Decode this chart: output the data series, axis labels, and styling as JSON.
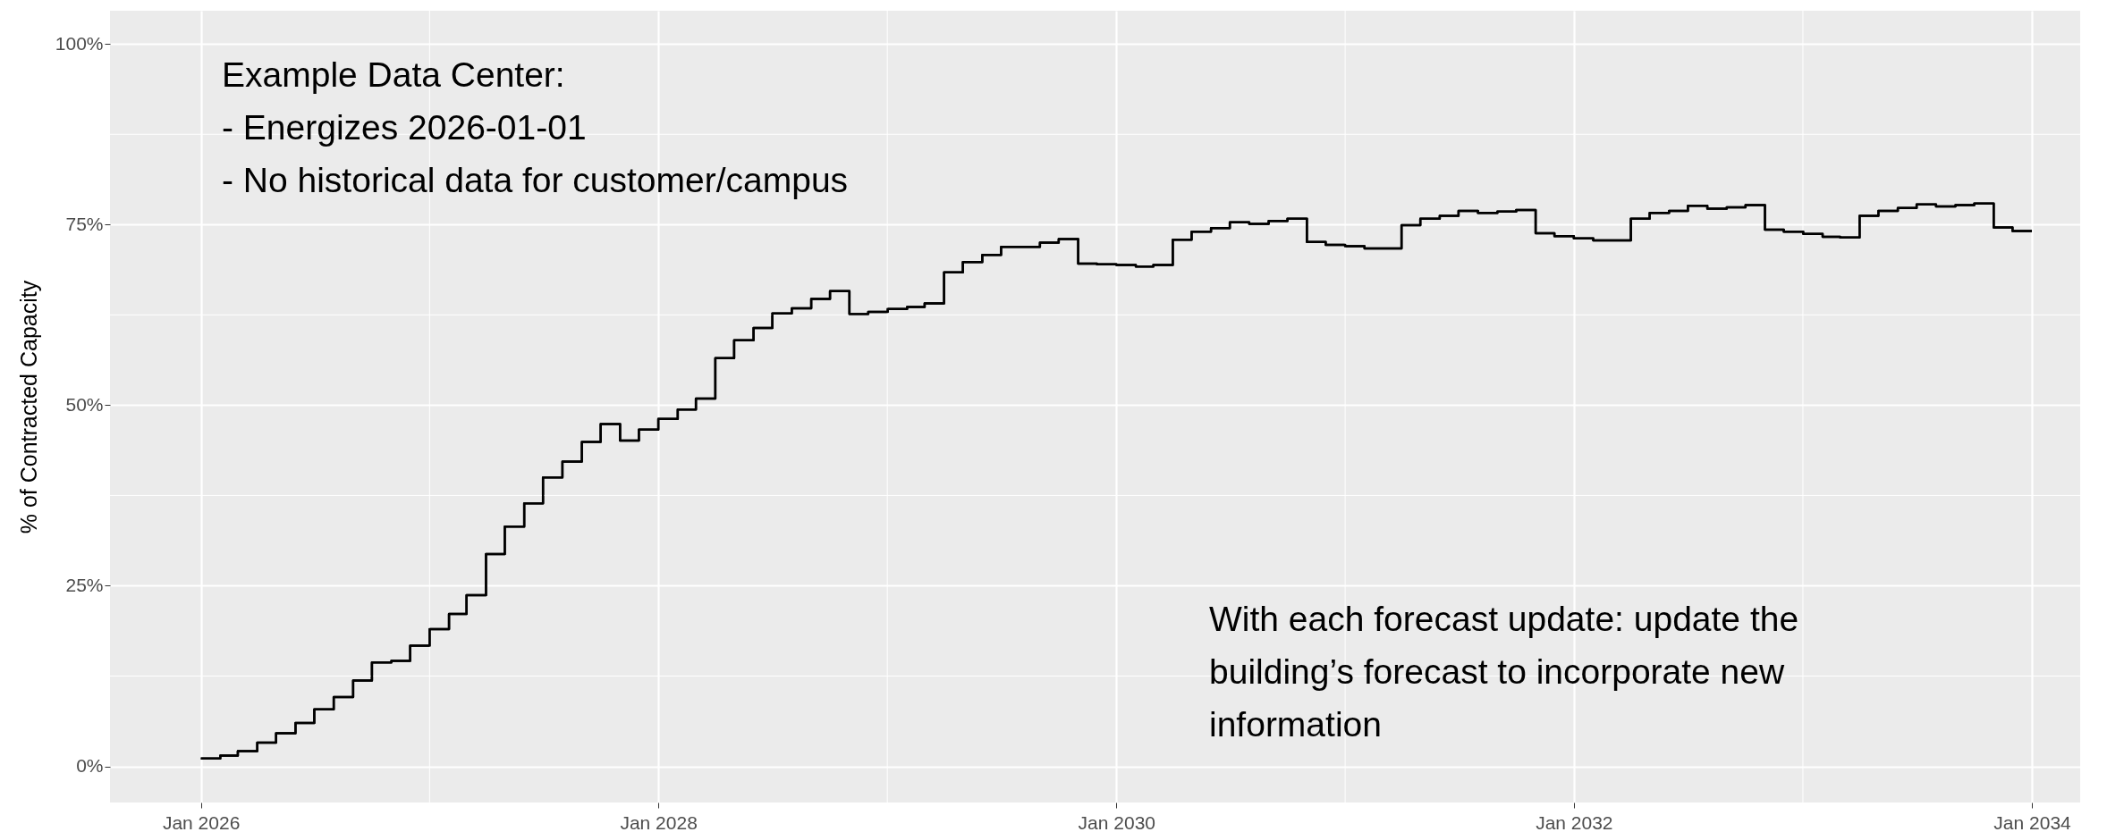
{
  "chart_data": {
    "type": "step",
    "ylabel": "% of Contracted Capacity",
    "x": [
      "2026-01",
      "2026-02",
      "2026-03",
      "2026-04",
      "2026-05",
      "2026-06",
      "2026-07",
      "2026-08",
      "2026-09",
      "2026-10",
      "2026-11",
      "2026-12",
      "2027-01",
      "2027-02",
      "2027-03",
      "2027-04",
      "2027-05",
      "2027-06",
      "2027-07",
      "2027-08",
      "2027-09",
      "2027-10",
      "2027-11",
      "2027-12",
      "2028-01",
      "2028-02",
      "2028-03",
      "2028-04",
      "2028-05",
      "2028-06",
      "2028-07",
      "2028-08",
      "2028-09",
      "2028-10",
      "2028-11",
      "2028-12",
      "2029-01",
      "2029-02",
      "2029-03",
      "2029-04",
      "2029-05",
      "2029-06",
      "2029-07",
      "2029-08",
      "2029-09",
      "2029-10",
      "2029-11",
      "2029-12",
      "2030-01",
      "2030-02",
      "2030-03",
      "2030-04",
      "2030-05",
      "2030-06",
      "2030-07",
      "2030-08",
      "2030-09",
      "2030-10",
      "2030-11",
      "2030-12",
      "2031-01",
      "2031-02",
      "2031-03",
      "2031-04",
      "2031-05",
      "2031-06",
      "2031-07",
      "2031-08",
      "2031-09",
      "2031-10",
      "2031-11",
      "2031-12",
      "2032-01",
      "2032-02",
      "2032-03",
      "2032-04",
      "2032-05",
      "2032-06",
      "2032-07",
      "2032-08",
      "2032-09",
      "2032-10",
      "2032-11",
      "2032-12",
      "2033-01",
      "2033-02",
      "2033-03",
      "2033-04",
      "2033-05",
      "2033-06",
      "2033-07",
      "2033-08",
      "2033-09",
      "2033-10",
      "2033-11",
      "2033-12",
      "2034-01"
    ],
    "series": [
      {
        "color": "#000000",
        "values": [
          1.1,
          1.5,
          2.1,
          3.3,
          4.6,
          6.0,
          7.9,
          9.6,
          11.9,
          14.4,
          14.6,
          16.7,
          19.0,
          21.1,
          23.7,
          29.4,
          33.2,
          36.4,
          40.0,
          42.2,
          44.9,
          47.4,
          45.1,
          46.6,
          48.1,
          49.4,
          50.9,
          56.5,
          59.0,
          60.7,
          62.7,
          63.4,
          64.7,
          65.8,
          62.6,
          62.9,
          63.3,
          63.6,
          64.1,
          68.4,
          69.8,
          70.8,
          71.9,
          71.9,
          72.5,
          73.0,
          69.6,
          69.5,
          69.4,
          69.2,
          69.4,
          72.9,
          74.0,
          74.5,
          75.3,
          75.1,
          75.5,
          75.8,
          72.6,
          72.2,
          72.0,
          71.7,
          71.7,
          74.9,
          75.8,
          76.2,
          76.9,
          76.6,
          76.8,
          77.0,
          73.8,
          73.4,
          73.1,
          72.8,
          72.8,
          75.8,
          76.6,
          76.9,
          77.6,
          77.2,
          77.4,
          77.7,
          74.3,
          74.0,
          73.7,
          73.3,
          73.2,
          76.2,
          76.9,
          77.3,
          77.8,
          77.5,
          77.7,
          77.9,
          74.6,
          74.1,
          74.1
        ]
      }
    ],
    "xlim": [
      "2025-08-09",
      "2034-03-19"
    ],
    "xticks": [
      {
        "value": "2026-01",
        "label": "Jan 2026"
      },
      {
        "value": "2028-01",
        "label": "Jan 2028"
      },
      {
        "value": "2030-01",
        "label": "Jan 2030"
      },
      {
        "value": "2032-01",
        "label": "Jan 2032"
      },
      {
        "value": "2034-01",
        "label": "Jan 2034"
      }
    ],
    "ylim": [
      -5,
      104.6
    ],
    "yticks": [
      {
        "value": 0,
        "label": "0%"
      },
      {
        "value": 25,
        "label": "25%"
      },
      {
        "value": 50,
        "label": "50%"
      },
      {
        "value": 75,
        "label": "75%"
      },
      {
        "value": 100,
        "label": "100%"
      }
    ],
    "grid": true,
    "line_style": "solid",
    "marker": "none",
    "annotations": [
      "Example Data Center:\n-    Energizes 2026-01-01\n-    No historical data for customer/campus",
      "With each forecast update: update the\nbuilding’s forecast to incorporate new\ninformation"
    ]
  }
}
